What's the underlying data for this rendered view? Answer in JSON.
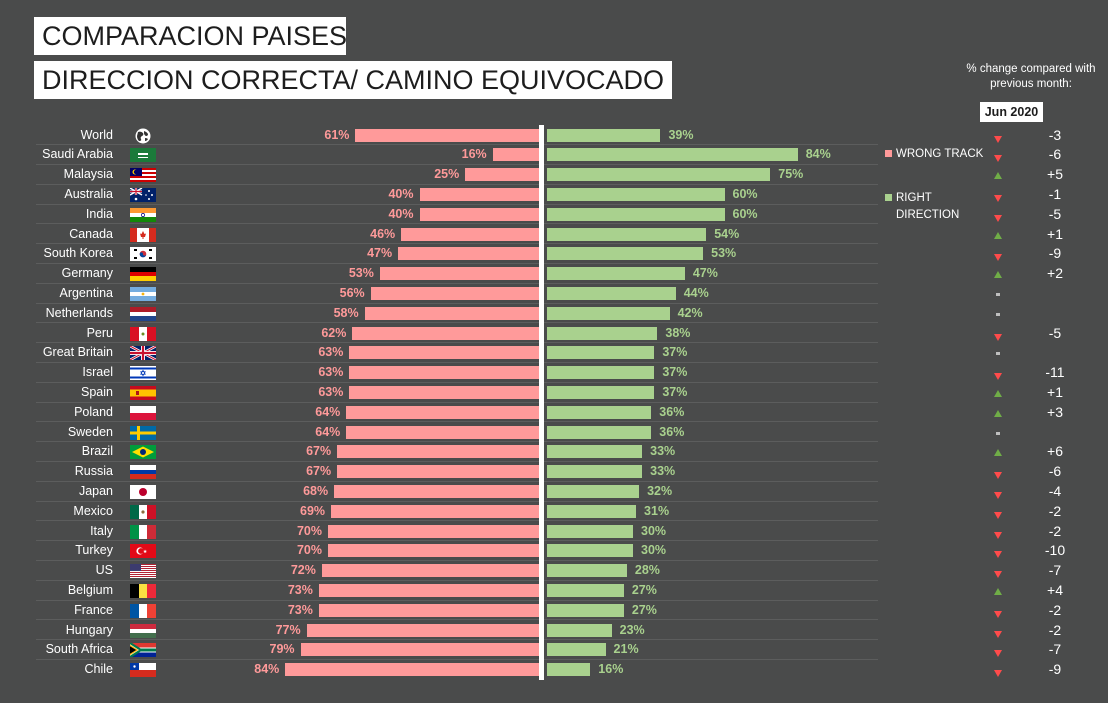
{
  "titles": {
    "line1": "COMPARACION PAISES",
    "line2": "DIRECCION CORRECTA/ CAMINO EQUIVOCADO"
  },
  "side_note": {
    "text": "% change compared with previous month:",
    "month": "Jun 2020"
  },
  "legend": {
    "wrong": "WRONG TRACK",
    "right": "RIGHT DIRECTION"
  },
  "colors": {
    "wrong": "#ff9a9a",
    "right": "#a9d18e",
    "up": "#70ad47",
    "down": "#ff4b4b",
    "flat": "#bfbfbf"
  },
  "chart_data": {
    "type": "bar",
    "orientation": "horizontal-diverging",
    "title": "DIRECCION CORRECTA/ CAMINO EQUIVOCADO",
    "categories": [
      "World",
      "Saudi Arabia",
      "Malaysia",
      "Australia",
      "India",
      "Canada",
      "South Korea",
      "Germany",
      "Argentina",
      "Netherlands",
      "Peru",
      "Great Britain",
      "Israel",
      "Spain",
      "Poland",
      "Sweden",
      "Brazil",
      "Russia",
      "Japan",
      "Mexico",
      "Italy",
      "Turkey",
      "US",
      "Belgium",
      "France",
      "Hungary",
      "South Africa",
      "Chile"
    ],
    "series": [
      {
        "name": "WRONG TRACK",
        "values": [
          61,
          16,
          25,
          40,
          40,
          46,
          47,
          53,
          56,
          58,
          62,
          63,
          63,
          63,
          64,
          64,
          67,
          67,
          68,
          69,
          70,
          70,
          72,
          73,
          73,
          77,
          79,
          84
        ]
      },
      {
        "name": "RIGHT DIRECTION",
        "values": [
          39,
          84,
          75,
          60,
          60,
          54,
          53,
          47,
          44,
          42,
          38,
          37,
          37,
          37,
          36,
          36,
          33,
          33,
          32,
          31,
          30,
          30,
          28,
          27,
          27,
          23,
          21,
          16
        ]
      }
    ],
    "value_labels_wrong": [
      "61%",
      "16%",
      "25%",
      "40%",
      "40%",
      "46%",
      "47%",
      "53%",
      "56%",
      "58%",
      "62%",
      "63%",
      "63%",
      "63%",
      "64%",
      "64%",
      "67%",
      "67%",
      "68%",
      "69%",
      "70%",
      "70%",
      "72%",
      "73%",
      "73%",
      "77%",
      "79%",
      "84%"
    ],
    "value_labels_right": [
      "39%",
      "84%",
      "75%",
      "60%",
      "60%",
      "54%",
      "53%",
      "47%",
      "44%",
      "42%",
      "38%",
      "37%",
      "37%",
      "37%",
      "36%",
      "36%",
      "33%",
      "33%",
      "32%",
      "31%",
      "30%",
      "30%",
      "28%",
      "27%",
      "27%",
      "23%",
      "21%",
      "16%"
    ],
    "change_direction": [
      "down",
      "down",
      "up",
      "down",
      "down",
      "up",
      "down",
      "up",
      "flat",
      "flat",
      "down",
      "flat",
      "down",
      "up",
      "up",
      "flat",
      "up",
      "down",
      "down",
      "down",
      "down",
      "down",
      "down",
      "up",
      "down",
      "down",
      "down",
      "down"
    ],
    "change_labels": [
      "-3",
      "-6",
      "+5",
      "-1",
      "-5",
      "+1",
      "-9",
      "+2",
      "",
      "",
      "-5",
      "",
      "-11",
      "+1",
      "+3",
      "",
      "+6",
      "-6",
      "-4",
      "-2",
      "-2",
      "-10",
      "-7",
      "+4",
      "-2",
      "-2",
      "-7",
      "-9"
    ],
    "flags": [
      "globe-icon",
      "saudi-arabia-flag",
      "malaysia-flag",
      "australia-flag",
      "india-flag",
      "canada-flag",
      "south-korea-flag",
      "germany-flag",
      "argentina-flag",
      "netherlands-flag",
      "peru-flag",
      "great-britain-flag",
      "israel-flag",
      "spain-flag",
      "poland-flag",
      "sweden-flag",
      "brazil-flag",
      "russia-flag",
      "japan-flag",
      "mexico-flag",
      "italy-flag",
      "turkey-flag",
      "us-flag",
      "belgium-flag",
      "france-flag",
      "hungary-flag",
      "south-africa-flag",
      "chile-flag"
    ],
    "xlim": [
      0,
      100
    ],
    "legend_position": "right"
  }
}
